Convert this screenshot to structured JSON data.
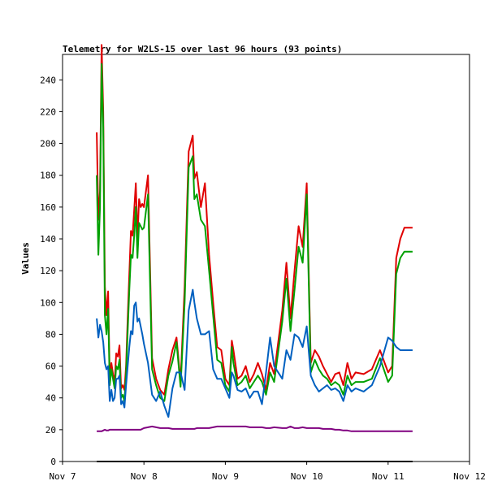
{
  "chart_data": {
    "type": "line",
    "title": "Telemetry for W2LS-15 over last 96 hours (93 points)",
    "ylabel": "Values",
    "xlabel": "",
    "ylim": [
      0,
      256
    ],
    "xlim": [
      7,
      12
    ],
    "yticks": [
      0,
      20,
      40,
      60,
      80,
      100,
      120,
      140,
      160,
      180,
      200,
      220,
      240
    ],
    "xticks": [
      {
        "value": 7,
        "label": "Nov 7"
      },
      {
        "value": 8,
        "label": "Nov 8"
      },
      {
        "value": 9,
        "label": "Nov 9"
      },
      {
        "value": 10,
        "label": "Nov 10"
      },
      {
        "value": 11,
        "label": "Nov 11"
      },
      {
        "value": 12,
        "label": "Nov 12"
      }
    ],
    "grid": false,
    "x": [
      7.42,
      7.44,
      7.46,
      7.48,
      7.5,
      7.52,
      7.54,
      7.56,
      7.58,
      7.6,
      7.62,
      7.64,
      7.66,
      7.68,
      7.7,
      7.72,
      7.74,
      7.76,
      7.78,
      7.8,
      7.82,
      7.84,
      7.86,
      7.88,
      7.9,
      7.92,
      7.94,
      7.96,
      7.98,
      8.0,
      8.05,
      8.1,
      8.15,
      8.2,
      8.25,
      8.3,
      8.35,
      8.4,
      8.45,
      8.5,
      8.55,
      8.6,
      8.62,
      8.65,
      8.7,
      8.75,
      8.8,
      8.85,
      8.9,
      8.95,
      9.0,
      9.05,
      9.08,
      9.1,
      9.15,
      9.2,
      9.25,
      9.3,
      9.35,
      9.4,
      9.45,
      9.5,
      9.55,
      9.6,
      9.7,
      9.75,
      9.8,
      9.85,
      9.9,
      9.95,
      10.0,
      10.05,
      10.1,
      10.15,
      10.2,
      10.25,
      10.3,
      10.35,
      10.4,
      10.45,
      10.5,
      10.55,
      10.6,
      10.7,
      10.8,
      10.9,
      11.0,
      11.05,
      11.1,
      11.15,
      11.2,
      11.25,
      11.3
    ],
    "series": [
      {
        "color": "#e00000",
        "values": [
          207,
          152,
          170,
          262,
          220,
          110,
          92,
          107,
          52,
          62,
          55,
          50,
          68,
          66,
          73,
          46,
          48,
          45,
          60,
          90,
          118,
          145,
          142,
          158,
          175,
          140,
          165,
          160,
          162,
          160,
          180,
          65,
          52,
          45,
          42,
          58,
          70,
          78,
          50,
          110,
          195,
          205,
          178,
          182,
          160,
          175,
          130,
          100,
          72,
          70,
          52,
          48,
          76,
          70,
          52,
          54,
          60,
          50,
          55,
          62,
          55,
          45,
          62,
          55,
          95,
          125,
          90,
          120,
          148,
          135,
          175,
          62,
          70,
          66,
          60,
          55,
          50,
          55,
          56,
          48,
          62,
          52,
          56,
          55,
          58,
          70,
          56,
          60,
          128,
          140,
          147,
          147,
          147
        ]
      },
      {
        "color": "#00a000",
        "values": [
          180,
          130,
          160,
          250,
          210,
          92,
          80,
          96,
          48,
          58,
          52,
          46,
          60,
          58,
          64,
          40,
          42,
          38,
          55,
          82,
          108,
          130,
          128,
          142,
          160,
          128,
          150,
          148,
          146,
          147,
          168,
          58,
          48,
          40,
          38,
          54,
          63,
          75,
          47,
          100,
          185,
          192,
          165,
          168,
          152,
          148,
          120,
          92,
          64,
          62,
          48,
          44,
          72,
          62,
          48,
          50,
          54,
          46,
          50,
          54,
          50,
          42,
          56,
          50,
          88,
          115,
          82,
          108,
          135,
          125,
          168,
          56,
          64,
          58,
          54,
          52,
          48,
          50,
          48,
          42,
          54,
          48,
          50,
          50,
          52,
          65,
          50,
          54,
          118,
          128,
          132,
          132,
          132
        ]
      },
      {
        "color": "#0060c0",
        "values": [
          90,
          78,
          86,
          82,
          75,
          62,
          58,
          60,
          38,
          45,
          38,
          40,
          52,
          52,
          54,
          36,
          38,
          34,
          48,
          60,
          72,
          82,
          80,
          98,
          100,
          88,
          90,
          85,
          80,
          74,
          62,
          42,
          38,
          44,
          35,
          28,
          46,
          56,
          56,
          45,
          95,
          108,
          100,
          90,
          80,
          80,
          82,
          58,
          52,
          52,
          46,
          40,
          56,
          54,
          45,
          44,
          46,
          40,
          44,
          44,
          36,
          56,
          78,
          60,
          52,
          70,
          64,
          80,
          78,
          72,
          85,
          54,
          48,
          44,
          46,
          48,
          45,
          46,
          44,
          38,
          48,
          44,
          46,
          44,
          48,
          60,
          78,
          76,
          72,
          70,
          70,
          70,
          70
        ]
      },
      {
        "color": "#800080",
        "values": [
          19,
          19,
          19,
          19,
          19.5,
          20,
          19.5,
          19.5,
          20,
          20,
          20,
          20,
          20,
          20,
          20,
          20,
          20,
          20,
          20,
          20,
          20,
          20,
          20,
          20,
          20,
          20,
          20,
          20,
          20.5,
          21,
          21.5,
          22,
          21.5,
          21,
          21,
          21,
          20.5,
          20.5,
          20.5,
          20.5,
          20.5,
          20.5,
          20.5,
          21,
          21,
          21,
          21,
          21.5,
          22,
          22,
          22,
          22,
          22,
          22,
          22,
          22,
          22,
          21.5,
          21.5,
          21.5,
          21.5,
          21,
          21,
          21.5,
          21,
          21,
          22,
          21,
          21,
          21.5,
          21,
          21,
          21,
          21,
          20.5,
          20.5,
          20.5,
          20,
          20,
          19.5,
          19.5,
          19,
          19,
          19,
          19,
          19,
          19,
          19,
          19,
          19,
          19,
          19,
          19
        ]
      },
      {
        "color": "#000000",
        "values": [
          0,
          0,
          0,
          0,
          0,
          0,
          0,
          0,
          0,
          0,
          0,
          0,
          0,
          0,
          0,
          0,
          0,
          0,
          0,
          0,
          0,
          0,
          0,
          0,
          0,
          0,
          0,
          0,
          0,
          0,
          0,
          0,
          0,
          0,
          0,
          0,
          0,
          0,
          0,
          0,
          0,
          0,
          0,
          0,
          0,
          0,
          0,
          0,
          0,
          0,
          0,
          0,
          0,
          0,
          0,
          0,
          0,
          0,
          0,
          0,
          0,
          0,
          0,
          0,
          0,
          0,
          0,
          0,
          0,
          0,
          0,
          0,
          0,
          0,
          0,
          0,
          0,
          0,
          0,
          0,
          0,
          0,
          0,
          0,
          0,
          0,
          0,
          0,
          0,
          0,
          0,
          0,
          0
        ]
      }
    ]
  }
}
